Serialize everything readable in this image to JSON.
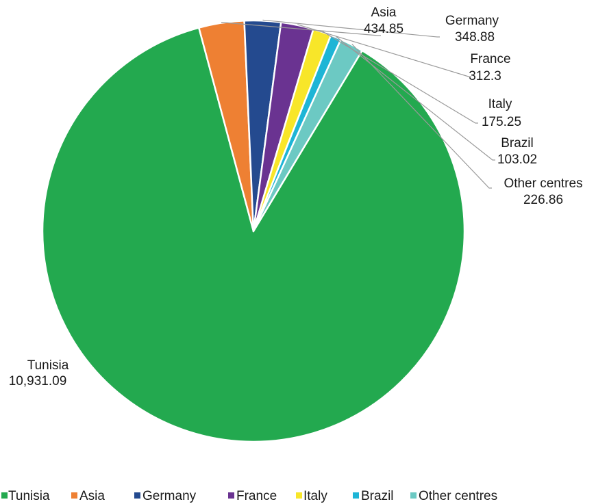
{
  "chart_data": {
    "type": "pie",
    "title": "",
    "categories": [
      "Tunisia",
      "Asia",
      "Germany",
      "France",
      "Italy",
      "Brazil",
      "Other centres"
    ],
    "values": [
      10931.09,
      434.85,
      348.88,
      312.3,
      175.25,
      103.02,
      226.86
    ],
    "value_labels": [
      "10,931.09",
      "434.85",
      "348.88",
      "312.3",
      "175.25",
      "103.02",
      "226.86"
    ],
    "colors": [
      "#23a94f",
      "#ee8033",
      "#244a8f",
      "#6a3391",
      "#f8e629",
      "#1eb5d6",
      "#6cc9c3"
    ],
    "start_angle_deg": 59,
    "direction": "clockwise",
    "legend_position": "bottom"
  }
}
